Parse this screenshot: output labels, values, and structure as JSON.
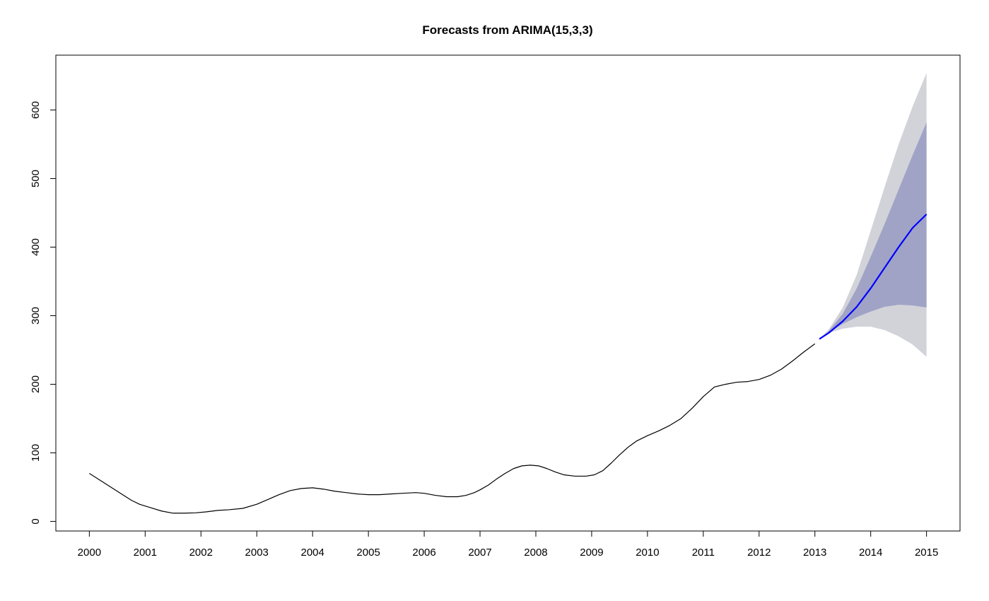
{
  "chart_data": {
    "type": "line",
    "title": "Forecasts from ARIMA(15,3,3)",
    "xlabel": "",
    "ylabel": "",
    "xlim": [
      1999.4,
      2015.6
    ],
    "ylim": [
      -14,
      680
    ],
    "grid": false,
    "legend": "none",
    "x_ticks": [
      2000,
      2001,
      2002,
      2003,
      2004,
      2005,
      2006,
      2007,
      2008,
      2009,
      2010,
      2011,
      2012,
      2013,
      2014,
      2015
    ],
    "y_ticks": [
      0,
      100,
      200,
      300,
      400,
      500,
      600
    ],
    "colors": {
      "history": "#000000",
      "forecast": "#0000ff",
      "band80": "#a0a3c5",
      "band95": "#d2d3d9"
    },
    "history": {
      "x": [
        2000.0,
        2000.25,
        2000.5,
        2000.75,
        2000.9,
        2001.1,
        2001.3,
        2001.5,
        2001.7,
        2001.9,
        2002.1,
        2002.3,
        2002.5,
        2002.75,
        2003.0,
        2003.2,
        2003.4,
        2003.6,
        2003.8,
        2004.0,
        2004.2,
        2004.4,
        2004.6,
        2004.8,
        2005.0,
        2005.2,
        2005.4,
        2005.6,
        2005.85,
        2006.0,
        2006.2,
        2006.4,
        2006.6,
        2006.75,
        2006.9,
        2007.0,
        2007.15,
        2007.3,
        2007.45,
        2007.6,
        2007.75,
        2007.9,
        2008.05,
        2008.2,
        2008.35,
        2008.5,
        2008.7,
        2008.9,
        2009.05,
        2009.2,
        2009.35,
        2009.5,
        2009.65,
        2009.8,
        2010.0,
        2010.2,
        2010.4,
        2010.6,
        2010.8,
        2011.0,
        2011.2,
        2011.4,
        2011.6,
        2011.8,
        2012.0,
        2012.2,
        2012.4,
        2012.6,
        2012.8,
        2013.0
      ],
      "y": [
        70,
        57,
        44,
        31,
        25,
        20,
        15,
        12,
        12,
        12.5,
        14,
        16,
        17,
        19,
        25,
        32,
        39,
        45,
        48,
        49,
        47,
        44,
        42,
        40,
        39,
        39,
        40,
        41,
        42,
        41,
        38,
        36,
        36,
        38,
        42,
        46,
        53,
        62,
        70,
        77,
        81,
        82,
        81,
        77,
        72,
        68,
        66,
        66,
        68,
        74,
        85,
        97,
        108,
        117,
        125,
        132,
        140,
        150,
        165,
        182,
        196,
        200,
        203,
        204,
        207,
        213,
        222,
        234,
        247,
        259
      ]
    },
    "forecast": {
      "x": [
        2013.08,
        2013.25,
        2013.5,
        2013.75,
        2014.0,
        2014.25,
        2014.5,
        2014.75,
        2015.0
      ],
      "y": [
        266,
        275,
        292,
        313,
        340,
        370,
        400,
        428,
        448
      ]
    },
    "pi80": {
      "x": [
        2013.08,
        2013.25,
        2013.5,
        2013.75,
        2014.0,
        2014.25,
        2014.5,
        2014.75,
        2015.0
      ],
      "lower": [
        266,
        276,
        288,
        298,
        306,
        313,
        316,
        315,
        312
      ],
      "upper": [
        266,
        278,
        303,
        340,
        386,
        434,
        484,
        534,
        582
      ]
    },
    "pi95": {
      "x": [
        2013.08,
        2013.25,
        2013.5,
        2013.75,
        2014.0,
        2014.25,
        2014.5,
        2014.75,
        2015.0
      ],
      "lower": [
        266,
        275,
        281,
        284,
        284,
        279,
        270,
        258,
        240
      ],
      "upper": [
        266,
        280,
        312,
        360,
        424,
        488,
        550,
        605,
        654
      ]
    }
  }
}
